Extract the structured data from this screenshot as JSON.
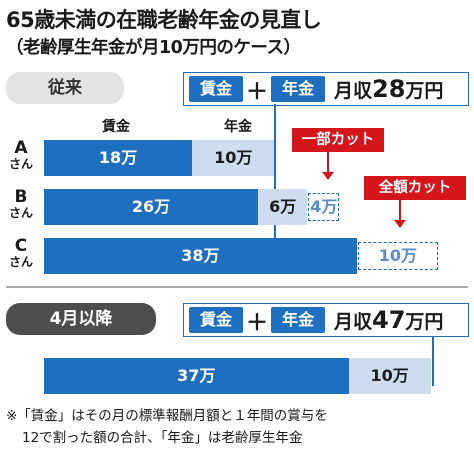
{
  "title": "65歳未満の在職老齢年金の見直し",
  "subtitle": "（老齢厚生年金が月10万円のケース）",
  "before": {
    "label": "従来",
    "legend": {
      "wage": "賃金",
      "plus": "＋",
      "pension": "年金",
      "income_prefix": "月収",
      "income_value": "28",
      "income_unit": "万円"
    },
    "col_wage": "賃金",
    "col_pension": "年金",
    "callout_partial": "一部カット",
    "callout_full": "全額カット"
  },
  "after": {
    "label": "4月以降",
    "legend": {
      "wage": "賃金",
      "plus": "＋",
      "pension": "年金",
      "income_prefix": "月収",
      "income_value": "47",
      "income_unit": "万円"
    }
  },
  "chart_data": {
    "type": "bar",
    "unit": "万円",
    "before": [
      {
        "person": "A",
        "suffix": "さん",
        "wage": 18,
        "wage_label": "18万",
        "pension_paid": 10,
        "pension_label": "10万",
        "pension_cut": 0,
        "cut_label": ""
      },
      {
        "person": "B",
        "suffix": "さん",
        "wage": 26,
        "wage_label": "26万",
        "pension_paid": 6,
        "pension_label": "6万",
        "pension_cut": 4,
        "cut_label": "4万"
      },
      {
        "person": "C",
        "suffix": "さん",
        "wage": 38,
        "wage_label": "38万",
        "pension_paid": 0,
        "pension_label": "",
        "pension_cut": 10,
        "cut_label": "10万"
      }
    ],
    "after": [
      {
        "wage": 37,
        "wage_label": "37万",
        "pension_paid": 10,
        "pension_label": "10万"
      }
    ]
  },
  "footnote_line1": "※「賃金」はその月の標準報酬月額と１年間の賞与を",
  "footnote_line2": "12で割った額の合計、「年金」は老齢厚生年金"
}
